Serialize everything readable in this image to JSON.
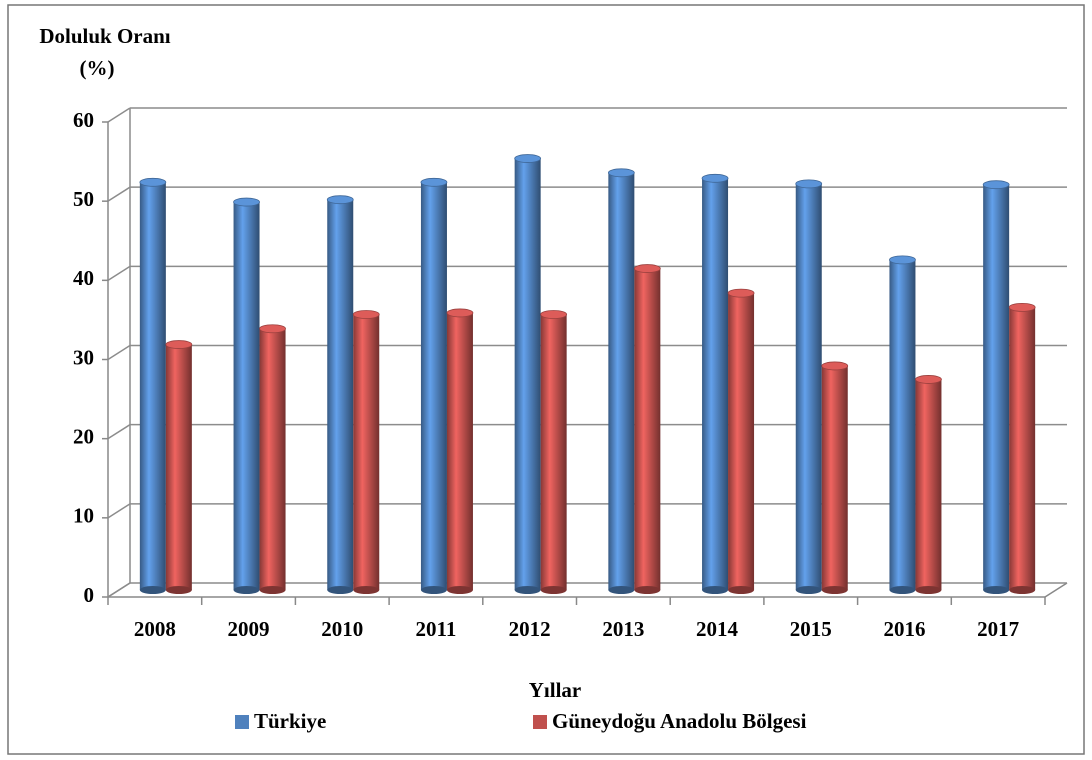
{
  "chart_data": {
    "type": "bar3d",
    "ylabel": [
      "Doluluk Oranı",
      "(%)"
    ],
    "xlabel": "Yıllar",
    "categories": [
      "2008",
      "2009",
      "2010",
      "2011",
      "2012",
      "2013",
      "2014",
      "2015",
      "2016",
      "2017"
    ],
    "series": [
      {
        "name": "Türkiye",
        "color": "#4f81bd",
        "values": [
          51.5,
          49,
          49.3,
          51.5,
          54.5,
          52.7,
          52,
          51.3,
          41.7,
          51.2
        ]
      },
      {
        "name": "Güneydoğu Anadolu Bölgesi",
        "color": "#c0504d",
        "values": [
          31,
          33,
          34.8,
          35,
          34.8,
          40.6,
          37.5,
          28.3,
          26.6,
          35.7
        ]
      }
    ],
    "ylim": [
      0,
      60
    ],
    "yticks": [
      0,
      10,
      20,
      30,
      40,
      50,
      60
    ],
    "grid": true,
    "legend": "bottom"
  }
}
